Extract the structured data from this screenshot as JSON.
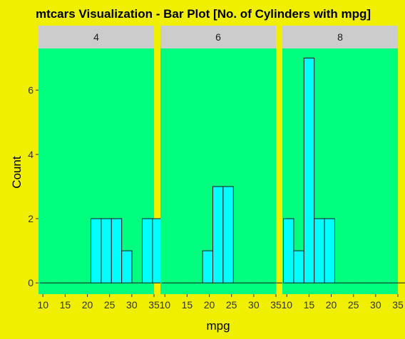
{
  "chart_data": {
    "type": "bar",
    "title": "mtcars Visualization - Bar Plot [No. of Cylinders with mpg]",
    "xlabel": "mpg",
    "ylabel": "Count",
    "xlim": [
      9,
      35
    ],
    "ylim": [
      -0.35,
      7.3
    ],
    "x_ticks": [
      10,
      15,
      20,
      25,
      30,
      35
    ],
    "y_ticks": [
      0,
      2,
      4,
      6
    ],
    "bin_width": 2.31,
    "grid": false,
    "legend": "none",
    "colors": {
      "background": "#f0ef00",
      "panel": "#00ff7f",
      "strip": "#cccccc",
      "bar_fill": "#00ffff",
      "bar_stroke": "#1a1a1a"
    },
    "facets": [
      {
        "label": "4",
        "bins": [
          {
            "x": 10.4,
            "count": 0
          },
          {
            "x": 12.71,
            "count": 0
          },
          {
            "x": 15.02,
            "count": 0
          },
          {
            "x": 17.33,
            "count": 0
          },
          {
            "x": 19.64,
            "count": 0
          },
          {
            "x": 21.95,
            "count": 2
          },
          {
            "x": 24.26,
            "count": 2
          },
          {
            "x": 26.57,
            "count": 2
          },
          {
            "x": 28.88,
            "count": 1
          },
          {
            "x": 31.19,
            "count": 0
          },
          {
            "x": 33.5,
            "count": 2
          },
          {
            "x": 35.81,
            "count": 2
          }
        ]
      },
      {
        "label": "6",
        "bins": [
          {
            "x": 10.4,
            "count": 0
          },
          {
            "x": 12.71,
            "count": 0
          },
          {
            "x": 15.02,
            "count": 0
          },
          {
            "x": 17.33,
            "count": 0
          },
          {
            "x": 19.64,
            "count": 1
          },
          {
            "x": 21.95,
            "count": 3
          },
          {
            "x": 24.26,
            "count": 3
          },
          {
            "x": 26.57,
            "count": 0
          },
          {
            "x": 28.88,
            "count": 0
          },
          {
            "x": 31.19,
            "count": 0
          },
          {
            "x": 33.5,
            "count": 0
          },
          {
            "x": 35.81,
            "count": 0
          }
        ]
      },
      {
        "label": "8",
        "bins": [
          {
            "x": 10.4,
            "count": 2
          },
          {
            "x": 12.71,
            "count": 1
          },
          {
            "x": 15.02,
            "count": 7
          },
          {
            "x": 17.33,
            "count": 2
          },
          {
            "x": 19.64,
            "count": 2
          },
          {
            "x": 21.95,
            "count": 0
          },
          {
            "x": 24.26,
            "count": 0
          },
          {
            "x": 26.57,
            "count": 0
          },
          {
            "x": 28.88,
            "count": 0
          },
          {
            "x": 31.19,
            "count": 0
          },
          {
            "x": 33.5,
            "count": 0
          },
          {
            "x": 35.81,
            "count": 0
          }
        ]
      }
    ]
  }
}
